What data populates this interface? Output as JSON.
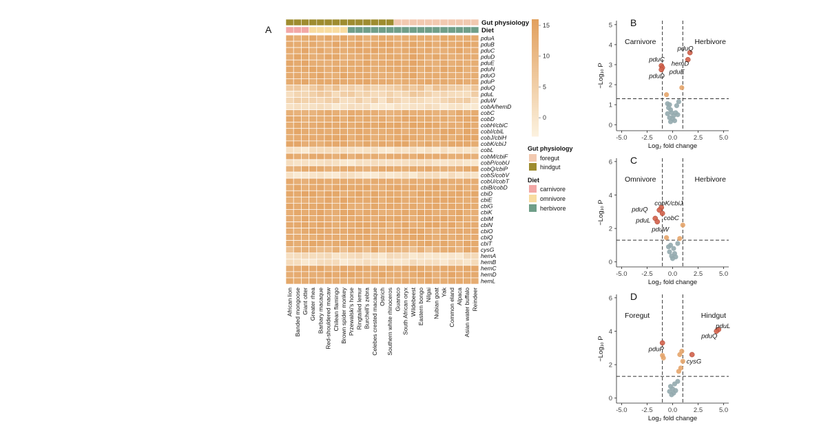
{
  "chart_data": [
    {
      "type": "heatmap",
      "panel": "A",
      "columns": [
        "African lion",
        "Banded mongoose",
        "Giant otter",
        "Greater rhea",
        "Barbary macaque",
        "Red-shouldered macaw",
        "Chilean flamingo",
        "Brown spider monkey",
        "Przewalski's horse",
        "Ringtailed lemur",
        "Burchell's zebra",
        "Celebes crested macaque",
        "Ostrich",
        "Southern white rhinoceros",
        "Guanaco",
        "South African oryx",
        "Wildebeest",
        "Eastern bongo",
        "Nilgai",
        "Nubian goat",
        "Yak",
        "Common eland",
        "Alpaca",
        "Asian water buffalo",
        "Reindeer"
      ],
      "rows": [
        "pduA",
        "pduB",
        "pduC",
        "pduD",
        "pduE",
        "pduN",
        "pduO",
        "pduP",
        "pduQ",
        "pduL",
        "pduW",
        "cobA/hemD",
        "cobC",
        "cobD",
        "cobH/cbiC",
        "cobI/cbiL",
        "cobJ/cbiH",
        "cobK/cbiJ",
        "cobL",
        "cobM/cbiF",
        "cobP/cobU",
        "cobQ/cbiP",
        "cobS/cobV",
        "cobU/cobT",
        "cbiB/cobD",
        "cbiD",
        "cbiE",
        "cbiG",
        "cbiK",
        "cbiM",
        "cbiN",
        "cbiO",
        "cbiQ",
        "cbiT",
        "cysG",
        "hemA",
        "hemB",
        "hemC",
        "hemD",
        "hemL"
      ],
      "gut_physiology": [
        "hindgut",
        "hindgut",
        "hindgut",
        "hindgut",
        "hindgut",
        "hindgut",
        "hindgut",
        "hindgut",
        "hindgut",
        "hindgut",
        "hindgut",
        "hindgut",
        "hindgut",
        "hindgut",
        "foregut",
        "foregut",
        "foregut",
        "foregut",
        "foregut",
        "foregut",
        "foregut",
        "foregut",
        "foregut",
        "foregut",
        "foregut"
      ],
      "diet": [
        "carnivore",
        "carnivore",
        "carnivore",
        "omnivore",
        "omnivore",
        "omnivore",
        "omnivore",
        "omnivore",
        "herbivore",
        "herbivore",
        "herbivore",
        "herbivore",
        "herbivore",
        "herbivore",
        "herbivore",
        "herbivore",
        "herbivore",
        "herbivore",
        "herbivore",
        "herbivore",
        "herbivore",
        "herbivore",
        "herbivore",
        "herbivore",
        "herbivore"
      ],
      "row_levels": [
        13.5,
        13.5,
        13.5,
        13.5,
        13.5,
        13.5,
        13.5,
        13.5,
        6,
        4.5,
        3,
        0.5,
        12.5,
        13,
        13.5,
        13.5,
        13.5,
        13.5,
        0.5,
        13,
        0.5,
        13,
        0.5,
        13,
        13.5,
        13.5,
        13.5,
        13.5,
        13.5,
        13.5,
        13.5,
        13.5,
        13.5,
        13.5,
        11,
        1,
        0.5,
        13.5,
        13.5,
        13.5
      ],
      "color_scale": {
        "min": -3,
        "max": 16,
        "ticks": [
          0,
          5,
          10,
          15
        ],
        "low_color": "#fcf2df",
        "high_color": "#e2a05e"
      },
      "legend": {
        "gut_title": "Gut physiology",
        "gut_items": [
          {
            "label": "foregut",
            "color": "#f2c9b0"
          },
          {
            "label": "hindgut",
            "color": "#9e8c2f"
          }
        ],
        "diet_title": "Diet",
        "diet_items": [
          {
            "label": "carnivore",
            "color": "#f2a7a6"
          },
          {
            "label": "omnivore",
            "color": "#f8dca0"
          },
          {
            "label": "herbivore",
            "color": "#6f9e88"
          }
        ]
      },
      "band_labels": [
        "Gut physiology",
        "Diet"
      ]
    },
    {
      "type": "scatter",
      "panel": "B",
      "group_left": "Carnivore",
      "group_right": "Herbivore",
      "xlim": [
        -5.5,
        5.5
      ],
      "ylim": [
        -0.3,
        5.2
      ],
      "xticks": [
        -5.0,
        -2.5,
        0.0,
        2.5,
        5.0
      ],
      "yticks": [
        0,
        1,
        2,
        3,
        4,
        5
      ],
      "xlabel": "Log₂ fold change",
      "ylabel": "−Log₁₀ P",
      "fc_threshold": 1,
      "p_threshold": 1.3,
      "labels": [
        {
          "text": "pduQ",
          "x": 1.7,
          "y": 3.6
        },
        {
          "text": "hemD",
          "x": 1.5,
          "y": 3.25
        },
        {
          "text": "pduC",
          "x": -1.1,
          "y": 2.95
        },
        {
          "text": "pduE",
          "x": -1.0,
          "y": 2.85
        },
        {
          "text": "pduD",
          "x": -1.1,
          "y": 2.75
        }
      ],
      "points": [
        [
          1.7,
          3.6,
          "sig"
        ],
        [
          1.5,
          3.25,
          "sig"
        ],
        [
          -1.1,
          2.95,
          "sig"
        ],
        [
          -1.0,
          2.85,
          "sig"
        ],
        [
          -1.1,
          2.75,
          "sig"
        ],
        [
          -0.6,
          1.5,
          "fc"
        ],
        [
          0.9,
          1.85,
          "fc"
        ],
        [
          -0.5,
          1.05,
          "ns"
        ],
        [
          -0.3,
          1.0,
          "ns"
        ],
        [
          -0.2,
          0.75,
          "ns"
        ],
        [
          -0.4,
          0.85,
          "ns"
        ],
        [
          0.6,
          1.15,
          "ns"
        ],
        [
          0.4,
          0.95,
          "ns"
        ],
        [
          -0.1,
          0.6,
          "ns"
        ],
        [
          0.1,
          0.45,
          "ns"
        ],
        [
          -0.3,
          0.35,
          "ns"
        ],
        [
          0.2,
          0.2,
          "ns"
        ],
        [
          -0.2,
          0.15,
          "ns"
        ],
        [
          0.0,
          0.3,
          "ns"
        ],
        [
          0.3,
          0.6,
          "ns"
        ],
        [
          -0.5,
          0.55,
          "ns"
        ],
        [
          0.5,
          0.5,
          "ns"
        ]
      ]
    },
    {
      "type": "scatter",
      "panel": "C",
      "group_left": "Omnivore",
      "group_right": "Herbivore",
      "xlim": [
        -5.5,
        5.5
      ],
      "ylim": [
        -0.3,
        6.2
      ],
      "xticks": [
        -5.0,
        -2.5,
        0.0,
        2.5,
        5.0
      ],
      "yticks": [
        0,
        2,
        4,
        6
      ],
      "xlabel": "Log₂ fold change",
      "ylabel": "−Log₁₀ P",
      "fc_threshold": 1,
      "p_threshold": 1.3,
      "labels": [
        {
          "text": "cobK/cbiJ",
          "x": -1.1,
          "y": 3.25
        },
        {
          "text": "pduQ",
          "x": -1.3,
          "y": 3.1
        },
        {
          "text": "cobC",
          "x": -1.0,
          "y": 2.9
        },
        {
          "text": "pduL",
          "x": -1.7,
          "y": 2.6
        },
        {
          "text": "pduW",
          "x": -1.5,
          "y": 2.4
        }
      ],
      "points": [
        [
          -1.1,
          3.25,
          "sig"
        ],
        [
          -1.3,
          3.1,
          "sig"
        ],
        [
          -1.0,
          2.9,
          "sig"
        ],
        [
          -1.7,
          2.6,
          "sig"
        ],
        [
          -1.5,
          2.4,
          "sig"
        ],
        [
          1.0,
          2.2,
          "fc"
        ],
        [
          -0.6,
          1.45,
          "fc"
        ],
        [
          0.7,
          1.4,
          "fc"
        ],
        [
          0.5,
          1.1,
          "ns"
        ],
        [
          -0.2,
          1.0,
          "ns"
        ],
        [
          0.1,
          0.8,
          "ns"
        ],
        [
          -0.3,
          0.6,
          "ns"
        ],
        [
          0.2,
          0.5,
          "ns"
        ],
        [
          -0.1,
          0.35,
          "ns"
        ],
        [
          0.0,
          0.2,
          "ns"
        ],
        [
          0.3,
          0.3,
          "ns"
        ],
        [
          -0.4,
          0.9,
          "ns"
        ]
      ]
    },
    {
      "type": "scatter",
      "panel": "D",
      "group_left": "Foregut",
      "group_right": "Hindgut",
      "xlim": [
        -5.5,
        5.5
      ],
      "ylim": [
        -0.3,
        6.2
      ],
      "xticks": [
        -5.0,
        -2.5,
        0.0,
        2.5,
        5.0
      ],
      "yticks": [
        0,
        2,
        4,
        6
      ],
      "xlabel": "Log₂ fold change",
      "ylabel": "−Log₁₀ P",
      "fc_threshold": 1,
      "p_threshold": 1.3,
      "labels": [
        {
          "text": "pduL",
          "x": 4.5,
          "y": 4.1
        },
        {
          "text": "pduQ",
          "x": 4.3,
          "y": 4.0
        },
        {
          "text": "pduP",
          "x": -1.0,
          "y": 3.3
        },
        {
          "text": "cysG",
          "x": 1.9,
          "y": 2.6
        }
      ],
      "points": [
        [
          4.5,
          4.1,
          "sig"
        ],
        [
          4.3,
          4.0,
          "sig"
        ],
        [
          -1.0,
          3.3,
          "sig"
        ],
        [
          1.9,
          2.6,
          "sig"
        ],
        [
          -1.0,
          2.55,
          "fc"
        ],
        [
          -0.9,
          2.4,
          "fc"
        ],
        [
          0.9,
          2.8,
          "fc"
        ],
        [
          0.7,
          2.6,
          "fc"
        ],
        [
          1.0,
          2.2,
          "fc"
        ],
        [
          0.8,
          1.8,
          "fc"
        ],
        [
          0.6,
          1.6,
          "fc"
        ],
        [
          0.5,
          1.0,
          "ns"
        ],
        [
          0.2,
          0.85,
          "ns"
        ],
        [
          -0.2,
          0.7,
          "ns"
        ],
        [
          0.0,
          0.55,
          "ns"
        ],
        [
          -0.3,
          0.4,
          "ns"
        ],
        [
          0.1,
          0.3,
          "ns"
        ],
        [
          -0.1,
          0.2,
          "ns"
        ],
        [
          0.3,
          0.45,
          "ns"
        ]
      ]
    }
  ],
  "colors": {
    "sig": "#d2604a",
    "fc": "#e6a56c",
    "ns": "#93aaae",
    "grid_line": "#333333"
  }
}
